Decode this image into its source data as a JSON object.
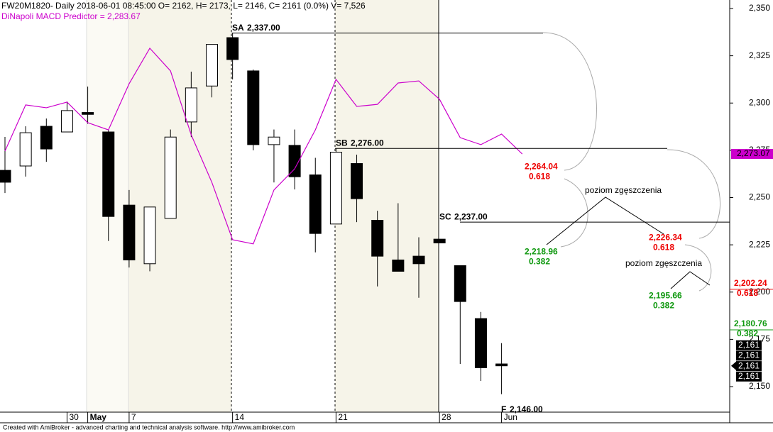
{
  "chart_data": {
    "type": "candlestick",
    "title": "FW20M1820- Daily 2018-06-01 08:45:00 O= 2162, H= 2173, L= 2146, C= 2161 (0.0%) V= 7,526",
    "subtitle": "DiNapoli MACD Predictor = 2,283.67",
    "footer": "Created with AmiBroker - advanced charting and technical analysis software. http://www.amibroker.com",
    "categories": [
      null,
      null,
      null,
      "30",
      "May",
      null,
      "7",
      null,
      null,
      null,
      null,
      "14",
      null,
      null,
      null,
      null,
      "21",
      null,
      null,
      null,
      null,
      "28",
      null,
      null,
      "Jun"
    ],
    "open": [
      2264.4,
      2266.7,
      2287.7,
      2284.7,
      2295,
      2284.7,
      2246,
      2215,
      2239,
      2290,
      2309,
      2334.6,
      2317,
      2278,
      2277.6,
      2262,
      2236,
      2268,
      2238,
      2217,
      2219,
      2228,
      2214,
      2186,
      2162
    ],
    "high": [
      2282.1,
      2287.7,
      2291.8,
      2300.8,
      2308.7,
      2285.8,
      2254,
      2245,
      2286,
      2316.6,
      2331,
      2337,
      2317.7,
      2286,
      2286,
      2271,
      2276,
      2272.7,
      2243,
      2247,
      2229,
      2228,
      2214,
      2189.5,
      2173
    ],
    "low": [
      2252.4,
      2261.1,
      2268.9,
      2284.7,
      2289,
      2227,
      2213,
      2211,
      2239,
      2282,
      2303,
      2312.5,
      2275,
      2258,
      2254.3,
      2221,
      2236,
      2237,
      2203,
      2211,
      2197,
      2226,
      2162,
      2153,
      2146
    ],
    "close": [
      2258.1,
      2284.3,
      2275.7,
      2296,
      2294,
      2240,
      2217,
      2245,
      2282,
      2308,
      2331,
      2323,
      2278,
      2282,
      2261,
      2231,
      2274,
      2249.4,
      2219,
      2211,
      2215,
      2226,
      2195,
      2160,
      2161
    ],
    "predictor": {
      "color": "#cc00cc",
      "last_label": "2,273.07",
      "values": [
        2274.6,
        2299,
        2297.5,
        2300.5,
        2289.6,
        2285.8,
        2310.2,
        2329,
        2317,
        2283.2,
        2258,
        2227.7,
        2225.5,
        2254,
        2265.2,
        2285.8,
        2312.5,
        2298.2,
        2299.3,
        2310.6,
        2311.7,
        2302,
        2281.7,
        2278,
        2283.6,
        2273.07
      ]
    },
    "ylim": [
      2136.5,
      2354.5
    ],
    "yticks": [
      {
        "value": 2150,
        "label": "2,150"
      },
      {
        "value": 2175,
        "label": "2,175"
      },
      {
        "value": 2200,
        "label": "2,200"
      },
      {
        "value": 2225,
        "label": "2,225"
      },
      {
        "value": 2250,
        "label": "2,250"
      },
      {
        "value": 2275,
        "label": "2,275"
      },
      {
        "value": 2300,
        "label": "2,300"
      },
      {
        "value": 2325,
        "label": "2,325"
      },
      {
        "value": 2350,
        "label": "2,350"
      }
    ],
    "swings": [
      {
        "name": "SA",
        "value": 2337,
        "label": "2,337.00"
      },
      {
        "name": "SB",
        "value": 2276,
        "label": "2,276.00"
      },
      {
        "name": "SC",
        "value": 2237,
        "label": "2,237.00"
      }
    ],
    "fib_levels": [
      {
        "value": 2264.04,
        "label": "2,264.04",
        "ratio": 0.618,
        "color": "#ee0000"
      },
      {
        "value": 2218.96,
        "label": "2,218.96",
        "ratio": 0.382,
        "color": "#119911"
      },
      {
        "value": 2226.34,
        "label": "2,226.34",
        "ratio": 0.618,
        "color": "#ee0000"
      },
      {
        "value": 2195.66,
        "label": "2,195.66",
        "ratio": 0.382,
        "color": "#119911"
      },
      {
        "value": 2202.24,
        "label": "2,202.24",
        "ratio": 0.618,
        "color": "#ee0000"
      },
      {
        "value": 2180.76,
        "label": "2,180.76",
        "ratio": 0.382,
        "color": "#119911"
      }
    ],
    "annotations": [
      "poziom zgęszczenia",
      "poziom zgęszczenia"
    ],
    "low_mark": {
      "name": "F",
      "value": 2146,
      "label": "2,146.00"
    },
    "price_boxes": [
      {
        "value": 2161,
        "label": "2,161"
      },
      {
        "value": 2161,
        "label": "2,161"
      },
      {
        "value": 2161,
        "label": "2,161"
      },
      {
        "value": 2161,
        "label": "2,161"
      }
    ]
  }
}
